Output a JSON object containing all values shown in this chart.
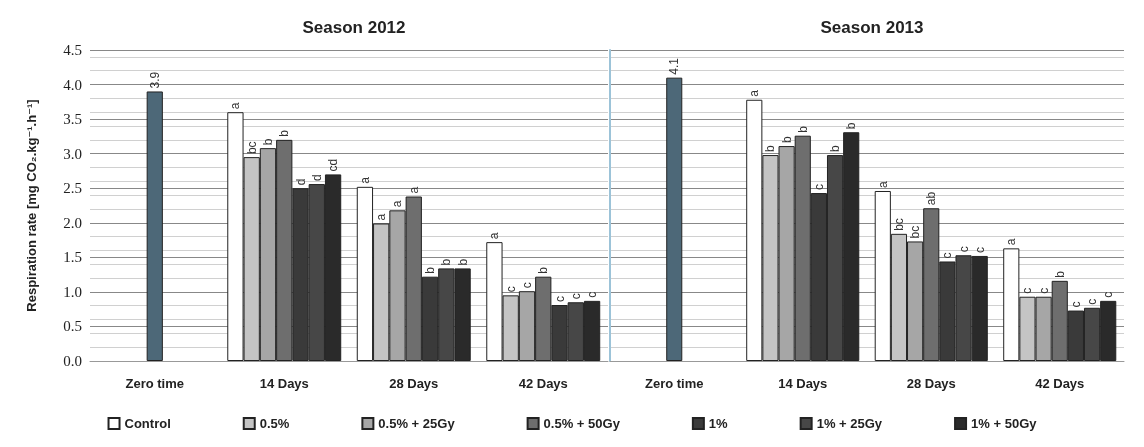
{
  "chart_data": [
    {
      "type": "bar",
      "title": "Season 2012",
      "ylabel": "Respiration rate [mg CO₂.kg⁻¹.h⁻¹]",
      "categories": [
        "Zero time",
        "14 Days",
        "28 Days",
        "42 Days"
      ],
      "ylim": [
        0,
        4.5
      ],
      "yticks": [
        {
          "value": 0,
          "label": "0.0"
        },
        0.5,
        {
          "value": 1,
          "label": "1.0"
        },
        1.5,
        {
          "value": 2,
          "label": "2.0"
        },
        2.5,
        {
          "value": 3,
          "label": "3.0"
        },
        3.5,
        {
          "value": 4,
          "label": "4.0"
        },
        4.5
      ],
      "grid": true,
      "legend": "bottom",
      "series": [
        {
          "color": "#4d6878",
          "values": [
            3.9,
            null,
            null,
            null
          ],
          "value_labels": [
            "3.9",
            null,
            null,
            null
          ]
        },
        {
          "name": "Control",
          "color": "#ffffff",
          "values": [
            null,
            3.6,
            2.52,
            1.72
          ],
          "value_labels": [
            null,
            "a",
            "a",
            "a"
          ]
        },
        {
          "name": "0.5%",
          "color": "#c4c4c4",
          "values": [
            null,
            2.95,
            1.99,
            0.95
          ],
          "value_labels": [
            null,
            "bc",
            "a",
            "c"
          ]
        },
        {
          "name": "0.5% + 25Gy",
          "color": "#a6a6a6",
          "values": [
            null,
            3.08,
            2.18,
            1.01
          ],
          "value_labels": [
            null,
            "b",
            "a",
            "c"
          ]
        },
        {
          "name": "0.5% + 50Gy",
          "color": "#6e6e6e",
          "values": [
            null,
            3.2,
            2.38,
            1.22
          ],
          "value_labels": [
            null,
            "b",
            "a",
            "b"
          ]
        },
        {
          "name": "1%",
          "color": "#3a3a3a",
          "values": [
            null,
            2.5,
            1.22,
            0.81
          ],
          "value_labels": [
            null,
            "d",
            "b",
            "c"
          ]
        },
        {
          "name": "1% + 25Gy",
          "color": "#474747",
          "values": [
            null,
            2.56,
            1.34,
            0.85
          ],
          "value_labels": [
            null,
            "d",
            "b",
            "c"
          ]
        },
        {
          "name": "1% + 50Gy",
          "color": "#2a2a2a",
          "values": [
            null,
            2.7,
            1.34,
            0.87
          ],
          "value_labels": [
            null,
            "cd",
            "b",
            "c"
          ]
        }
      ]
    },
    {
      "type": "bar",
      "title": "Season 2013",
      "categories": [
        "Zero time",
        "14 Days",
        "28 Days",
        "42 Days"
      ],
      "ylim": [
        0,
        4.5
      ],
      "yticks": [
        0,
        0.5,
        1,
        1.5,
        2,
        2.5,
        3,
        3.5,
        4,
        4.5
      ],
      "grid": true,
      "tick_labels": "x",
      "series": [
        {
          "color": "#4d6878",
          "values": [
            4.1,
            null,
            null,
            null
          ],
          "value_labels": [
            "4.1",
            null,
            null,
            null
          ]
        },
        {
          "color": "#ffffff",
          "values": [
            null,
            3.78,
            2.46,
            1.63
          ],
          "value_labels": [
            null,
            "a",
            "a",
            "a"
          ]
        },
        {
          "color": "#c4c4c4",
          "values": [
            null,
            2.98,
            1.84,
            0.93
          ],
          "value_labels": [
            null,
            "b",
            "bc",
            "c"
          ]
        },
        {
          "color": "#a6a6a6",
          "values": [
            null,
            3.11,
            1.73,
            0.93
          ],
          "value_labels": [
            null,
            "b",
            "bc",
            "c"
          ]
        },
        {
          "color": "#6e6e6e",
          "values": [
            null,
            3.26,
            2.21,
            1.16
          ],
          "value_labels": [
            null,
            "b",
            "ab",
            "b"
          ]
        },
        {
          "color": "#3a3a3a",
          "values": [
            null,
            2.43,
            1.44,
            0.73
          ],
          "value_labels": [
            null,
            "c",
            "c",
            "c"
          ]
        },
        {
          "color": "#474747",
          "values": [
            null,
            2.98,
            1.53,
            0.77
          ],
          "value_labels": [
            null,
            "b",
            "c",
            "c"
          ]
        },
        {
          "color": "#2a2a2a",
          "values": [
            null,
            3.31,
            1.52,
            0.87
          ],
          "value_labels": [
            null,
            "b",
            "c",
            "c"
          ]
        }
      ]
    }
  ]
}
